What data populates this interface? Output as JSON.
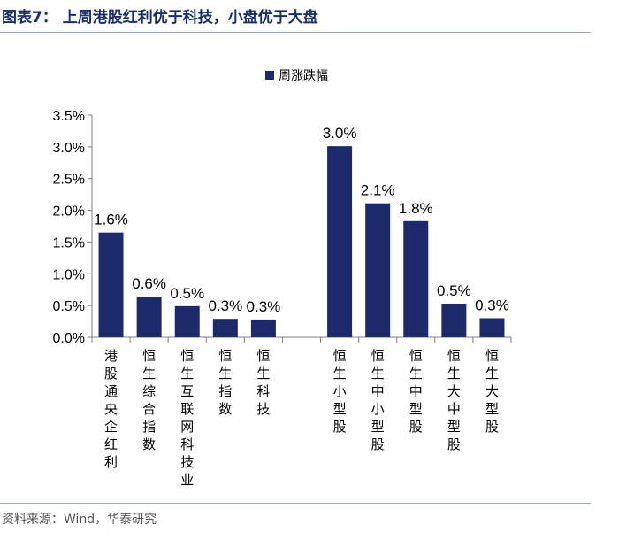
{
  "header": {
    "title": "图表7：  上周港股红利优于科技，小盘优于大盘"
  },
  "footer": {
    "source": "资料来源：Wind，华泰研究"
  },
  "colors": {
    "bar": "#1c2a6b",
    "rule": "#9aa7bd",
    "axis": "#7f7f7f"
  },
  "chart_data": {
    "type": "bar",
    "title": "",
    "xlabel": "",
    "ylabel": "",
    "ylim": [
      0,
      3.5
    ],
    "y_ticks": [
      "0.0%",
      "0.5%",
      "1.0%",
      "1.5%",
      "2.0%",
      "2.5%",
      "3.0%",
      "3.5%"
    ],
    "grid": false,
    "legend": {
      "position": "top-center",
      "entries": [
        "周涨跌幅"
      ]
    },
    "series": [
      {
        "name": "周涨跌幅",
        "categories": [
          "港股通央企红利",
          "恒生综合指数",
          "恒生互联网科技业",
          "恒生指数",
          "恒生科技",
          "",
          "恒生小型股",
          "恒生中小型股",
          "恒生中型股",
          "恒生大中型股",
          "恒生大型股"
        ],
        "values": [
          1.65,
          0.64,
          0.49,
          0.29,
          0.28,
          null,
          3.01,
          2.11,
          1.83,
          0.53,
          0.3
        ],
        "labels": [
          "1.6%",
          "0.6%",
          "0.5%",
          "0.3%",
          "0.3%",
          "",
          "3.0%",
          "2.1%",
          "1.8%",
          "0.5%",
          "0.3%"
        ]
      }
    ]
  }
}
